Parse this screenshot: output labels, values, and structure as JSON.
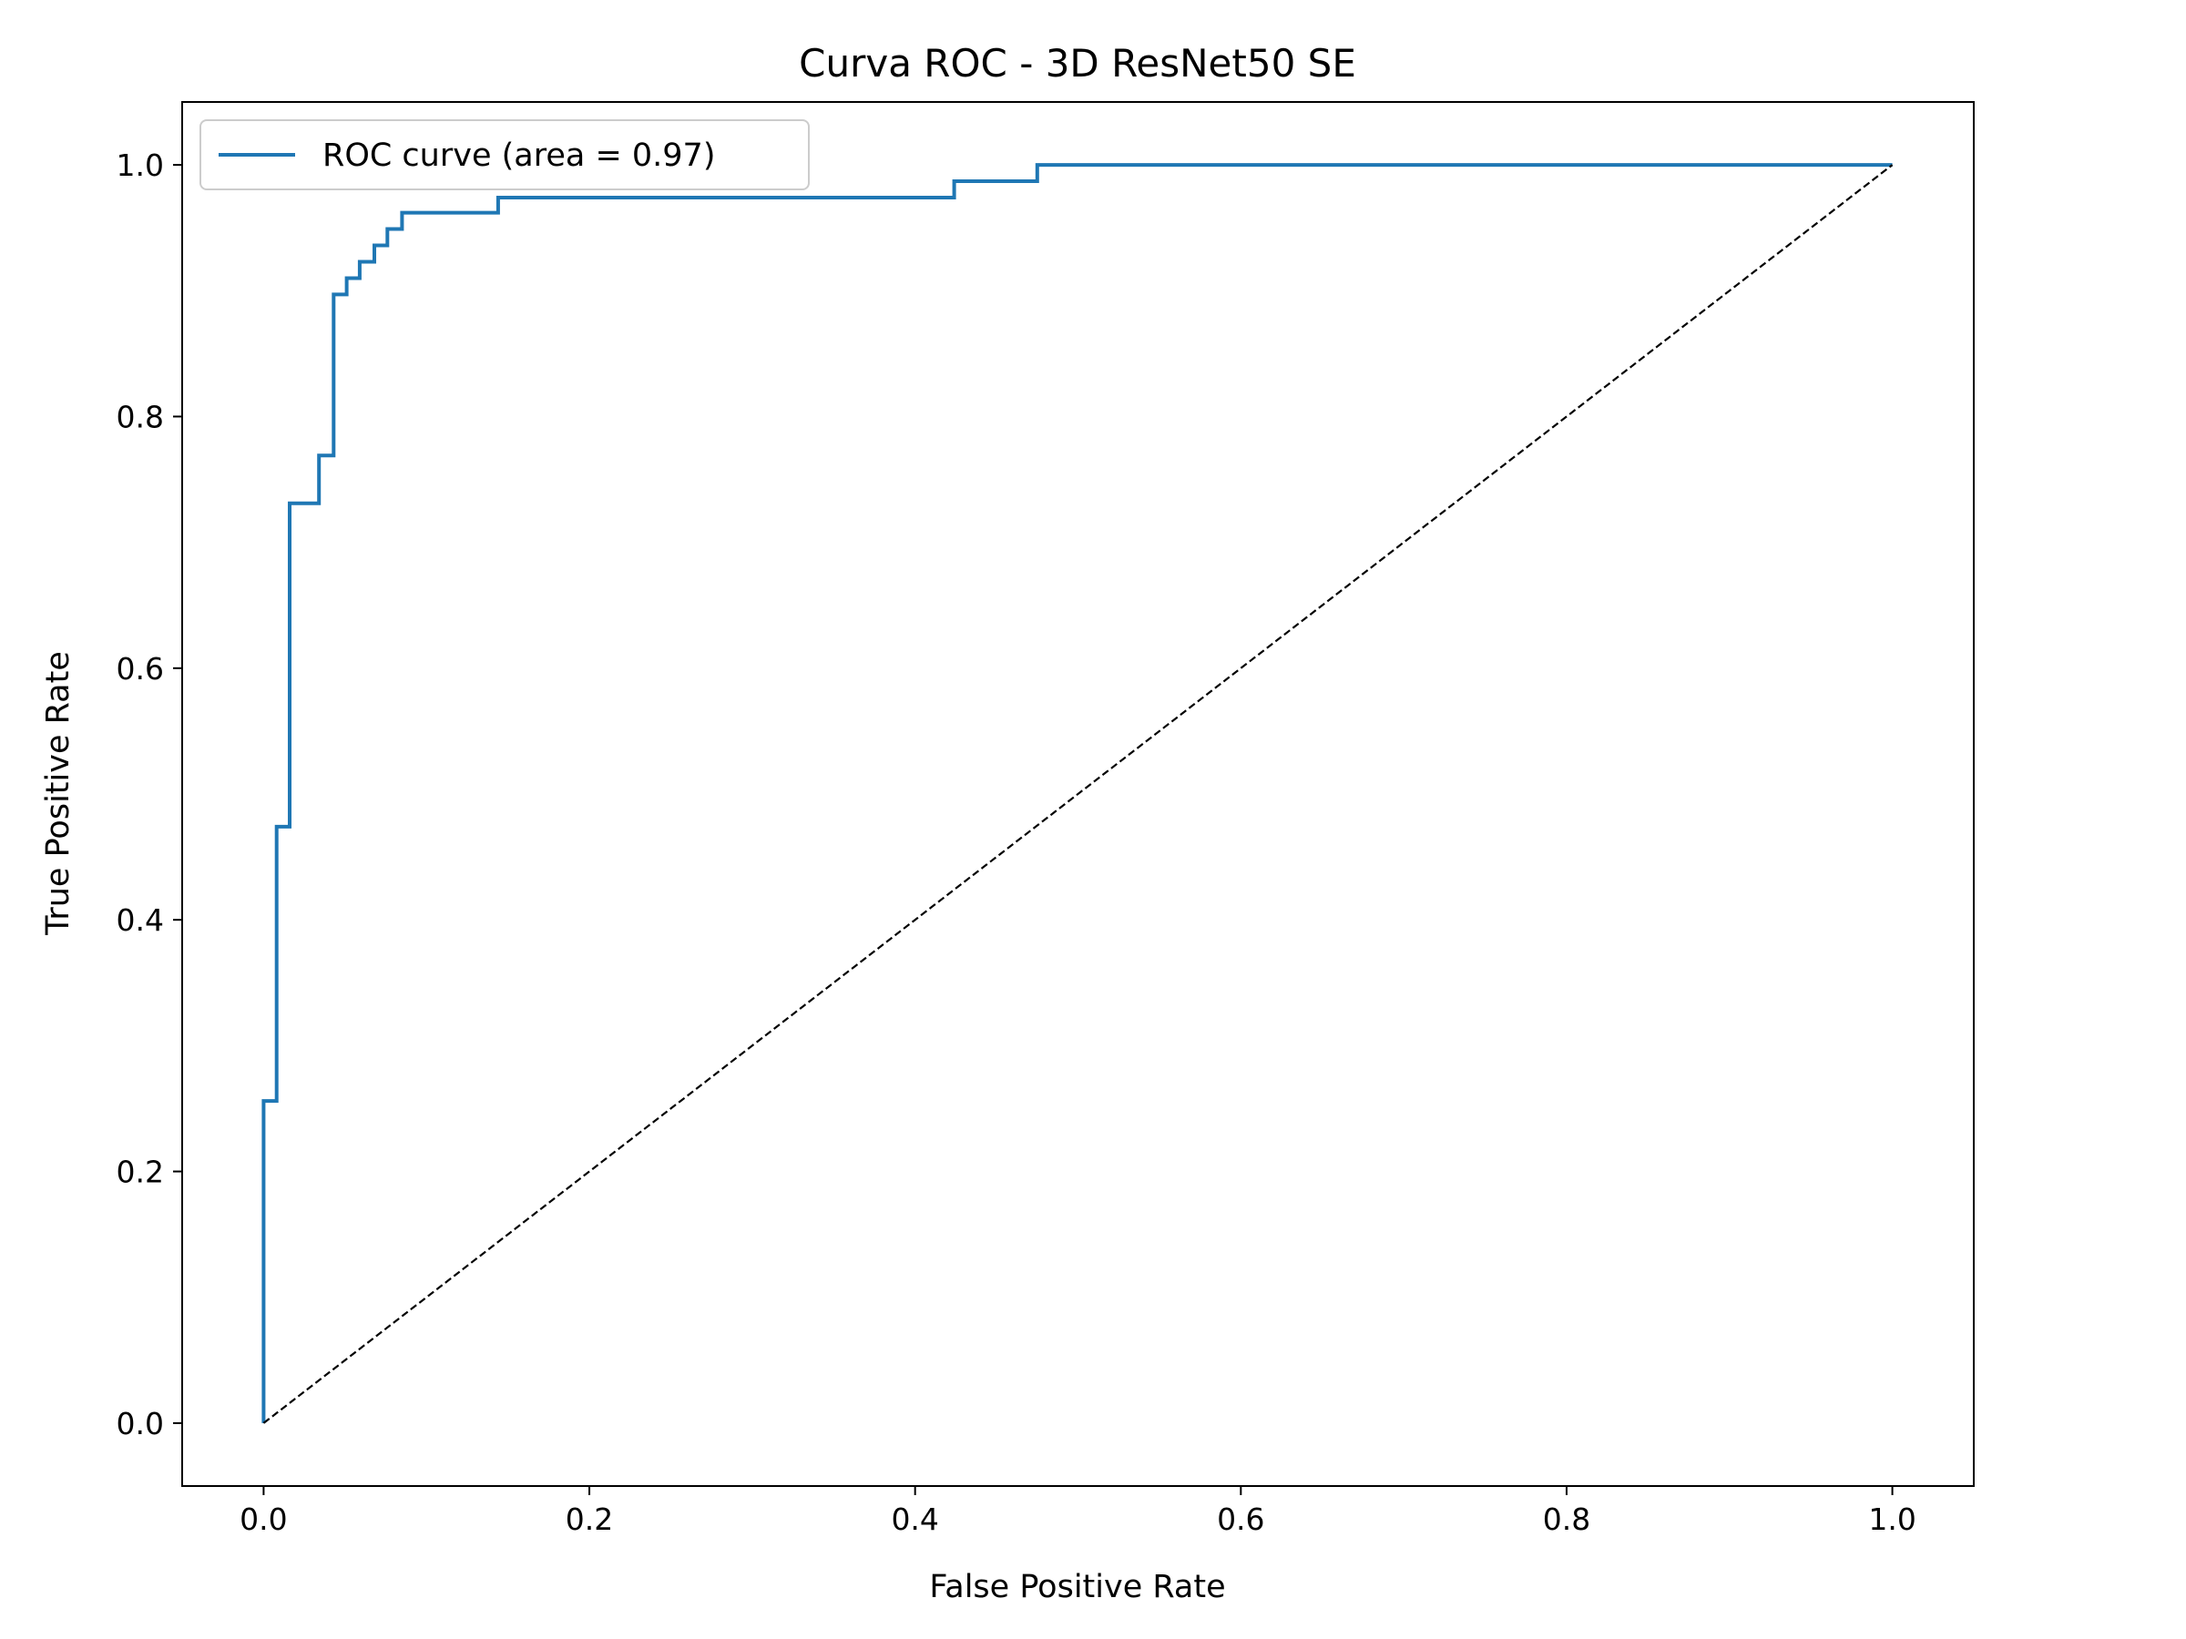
{
  "chart_data": {
    "type": "line",
    "title": "Curva ROC - 3D ResNet50 SE",
    "xlabel": "False Positive Rate",
    "ylabel": "True Positive Rate",
    "xlim": [
      -0.05,
      1.05
    ],
    "ylim": [
      -0.05,
      1.05
    ],
    "xticks": [
      0.0,
      0.2,
      0.4,
      0.6,
      0.8,
      1.0
    ],
    "xtick_labels": [
      "0.0",
      "0.2",
      "0.4",
      "0.6",
      "0.8",
      "1.0"
    ],
    "yticks": [
      0.0,
      0.2,
      0.4,
      0.6,
      0.8,
      1.0
    ],
    "ytick_labels": [
      "0.0",
      "0.2",
      "0.4",
      "0.6",
      "0.8",
      "1.0"
    ],
    "grid": false,
    "legend": {
      "placement": "top-left",
      "entries": [
        {
          "label": "ROC curve (area = 0.97)",
          "color": "#1f77b4",
          "style": "solid"
        }
      ]
    },
    "series": [
      {
        "name": "ROC curve (area = 0.97)",
        "color": "#1f77b4",
        "style": "solid",
        "x": [
          0.0,
          0.0,
          0.008,
          0.008,
          0.016,
          0.016,
          0.034,
          0.034,
          0.043,
          0.043,
          0.051,
          0.051,
          0.059,
          0.059,
          0.068,
          0.068,
          0.076,
          0.076,
          0.085,
          0.085,
          0.144,
          0.144,
          0.424,
          0.424,
          0.475,
          0.475,
          1.0
        ],
        "y": [
          0.0,
          0.256,
          0.256,
          0.474,
          0.474,
          0.731,
          0.731,
          0.769,
          0.769,
          0.897,
          0.897,
          0.91,
          0.91,
          0.923,
          0.923,
          0.936,
          0.936,
          0.949,
          0.949,
          0.962,
          0.962,
          0.974,
          0.974,
          0.987,
          0.987,
          1.0,
          1.0
        ]
      },
      {
        "color": "#000000",
        "style": "dashed",
        "x": [
          0.0,
          1.0
        ],
        "y": [
          0.0,
          1.0
        ]
      }
    ]
  }
}
